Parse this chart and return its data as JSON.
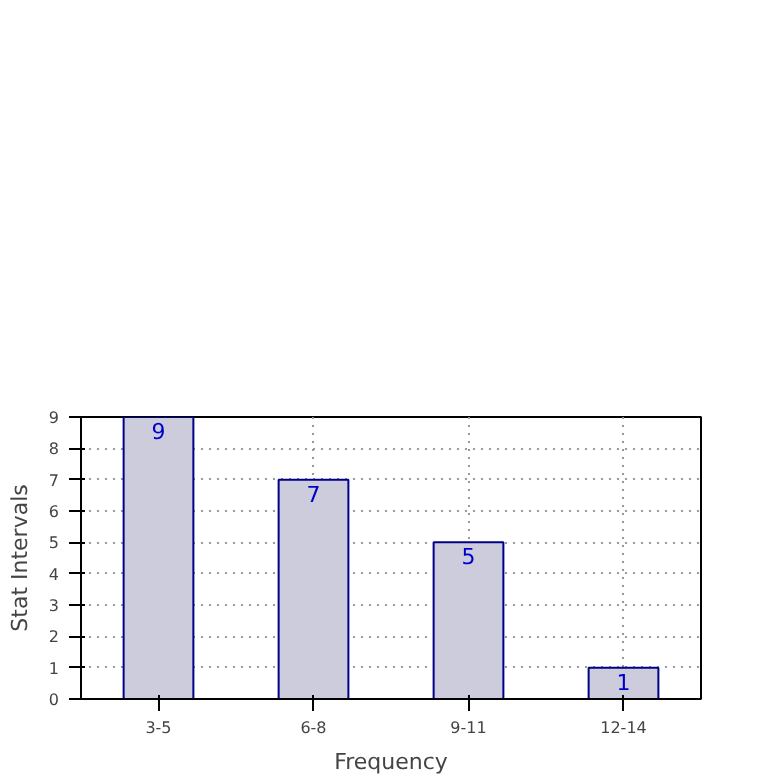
{
  "chart_data": {
    "type": "bar",
    "xlabel": "Frequency",
    "ylabel": "Stat Intervals",
    "categories": [
      "3-5",
      "6-8",
      "9-11",
      "12-14"
    ],
    "values": [
      9,
      7,
      5,
      1
    ],
    "color": "#ccccdd",
    "ylim": [
      0,
      9
    ],
    "yticks": [
      0,
      1,
      2,
      3,
      4,
      5,
      6,
      7,
      8,
      9
    ],
    "grid": true,
    "data_labels": true
  }
}
